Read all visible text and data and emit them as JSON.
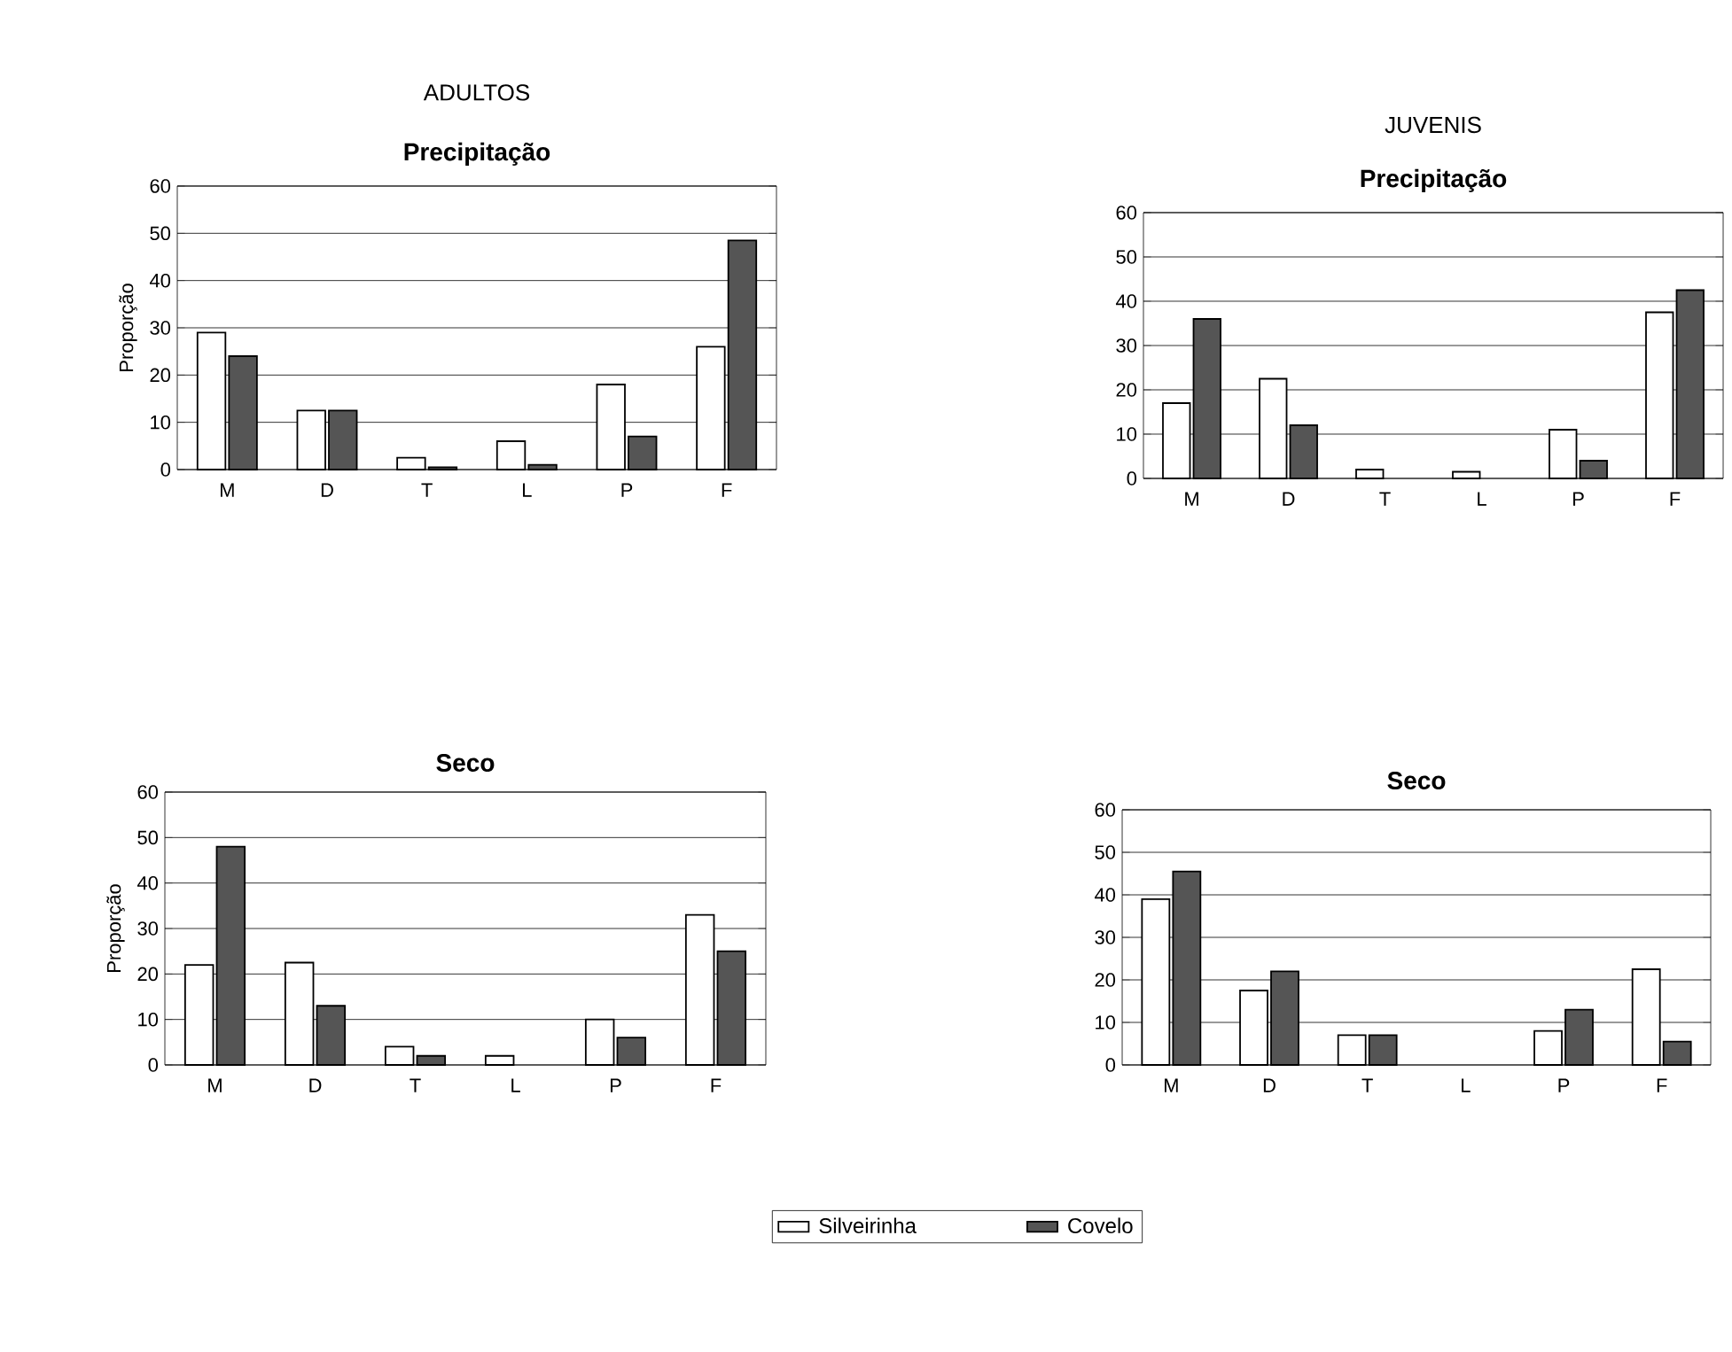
{
  "chart_data": [
    {
      "type": "bar",
      "annotations": [
        "ADULTOS"
      ],
      "title": "Precipitação",
      "ylabel": "Proporção",
      "categories": [
        "M",
        "D",
        "T",
        "L",
        "P",
        "F"
      ],
      "series": [
        {
          "color": "#ffffff",
          "values": [
            29,
            12.5,
            2.5,
            6,
            18,
            26
          ]
        },
        {
          "color": "#555555",
          "values": [
            24,
            12.5,
            0.5,
            1,
            7,
            48.5
          ]
        }
      ],
      "ylim": [
        0,
        60
      ],
      "yticks": [
        0,
        10,
        20,
        30,
        40,
        50,
        60
      ],
      "grid": "y"
    },
    {
      "type": "bar",
      "annotations": [
        "JUVENIS"
      ],
      "title": "Precipitação",
      "categories": [
        "M",
        "D",
        "T",
        "L",
        "P",
        "F"
      ],
      "series": [
        {
          "color": "#ffffff",
          "values": [
            17,
            22.5,
            2,
            1.5,
            11,
            37.5
          ]
        },
        {
          "color": "#555555",
          "values": [
            36,
            12,
            0,
            0,
            4,
            42.5
          ]
        }
      ],
      "ylim": [
        0,
        60
      ],
      "yticks": [
        0,
        10,
        20,
        30,
        40,
        50,
        60
      ],
      "grid": "y"
    },
    {
      "type": "bar",
      "title": "Seco",
      "ylabel": "Proporção",
      "categories": [
        "M",
        "D",
        "T",
        "L",
        "P",
        "F"
      ],
      "series": [
        {
          "name": "Silveirinha",
          "color": "#ffffff",
          "values": [
            22,
            22.5,
            4,
            2,
            10,
            33
          ]
        },
        {
          "name": "Covelo",
          "color": "#555555",
          "values": [
            48,
            13,
            2,
            0,
            6,
            25
          ]
        }
      ],
      "ylim": [
        0,
        60
      ],
      "yticks": [
        0,
        10,
        20,
        30,
        40,
        50,
        60
      ],
      "grid": "y",
      "legend": "bottom"
    },
    {
      "type": "bar",
      "title": "Seco",
      "categories": [
        "M",
        "D",
        "T",
        "L",
        "P",
        "F"
      ],
      "series": [
        {
          "color": "#ffffff",
          "values": [
            39,
            17.5,
            7,
            0,
            8,
            22.5
          ]
        },
        {
          "color": "#555555",
          "values": [
            45.5,
            22,
            7,
            0,
            13,
            5.5
          ]
        }
      ],
      "ylim": [
        0,
        60
      ],
      "yticks": [
        0,
        10,
        20,
        30,
        40,
        50,
        60
      ],
      "grid": "y"
    }
  ]
}
